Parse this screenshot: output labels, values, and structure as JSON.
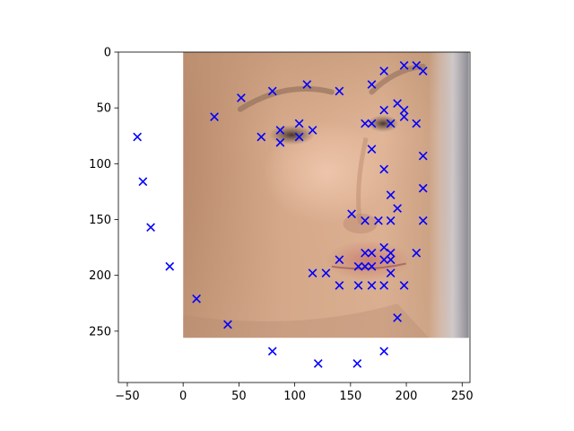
{
  "chart_data": {
    "type": "scatter",
    "title": "",
    "xlabel": "",
    "ylabel": "",
    "xlim": [
      -58,
      257
    ],
    "ylim": [
      296,
      0
    ],
    "y_inverted": true,
    "grid": false,
    "legend": "none",
    "marker": "x",
    "marker_color": "#0000ff",
    "background_image": {
      "depicts": "face-photo",
      "extent_x": [
        0,
        256
      ],
      "extent_y": [
        0,
        256
      ]
    },
    "xticks": [
      -50,
      0,
      50,
      100,
      150,
      200,
      250
    ],
    "yticks": [
      0,
      50,
      100,
      150,
      200,
      250
    ],
    "xtick_labels": [
      "−50",
      "0",
      "50",
      "100",
      "150",
      "200",
      "250"
    ],
    "ytick_labels": [
      "0",
      "50",
      "100",
      "150",
      "200",
      "250"
    ],
    "points": [
      [
        -41,
        76
      ],
      [
        -36,
        116
      ],
      [
        -29,
        157
      ],
      [
        -12,
        192
      ],
      [
        12,
        221
      ],
      [
        40,
        244
      ],
      [
        80,
        268
      ],
      [
        121,
        279
      ],
      [
        156,
        279
      ],
      [
        180,
        268
      ],
      [
        28,
        58
      ],
      [
        52,
        41
      ],
      [
        80,
        35
      ],
      [
        111,
        29
      ],
      [
        140,
        35
      ],
      [
        70,
        76
      ],
      [
        87,
        70
      ],
      [
        87,
        81
      ],
      [
        104,
        64
      ],
      [
        104,
        76
      ],
      [
        116,
        70
      ],
      [
        163,
        64
      ],
      [
        169,
        64
      ],
      [
        186,
        64
      ],
      [
        180,
        52
      ],
      [
        192,
        46
      ],
      [
        198,
        52
      ],
      [
        198,
        58
      ],
      [
        169,
        29
      ],
      [
        180,
        17
      ],
      [
        198,
        12
      ],
      [
        209,
        12
      ],
      [
        215,
        17
      ],
      [
        209,
        64
      ],
      [
        215,
        93
      ],
      [
        215,
        122
      ],
      [
        215,
        151
      ],
      [
        209,
        180
      ],
      [
        169,
        87
      ],
      [
        180,
        105
      ],
      [
        186,
        128
      ],
      [
        192,
        140
      ],
      [
        151,
        145
      ],
      [
        163,
        151
      ],
      [
        175,
        151
      ],
      [
        186,
        151
      ],
      [
        140,
        186
      ],
      [
        163,
        180
      ],
      [
        169,
        180
      ],
      [
        180,
        175
      ],
      [
        186,
        180
      ],
      [
        186,
        186
      ],
      [
        180,
        186
      ],
      [
        116,
        198
      ],
      [
        128,
        198
      ],
      [
        157,
        192
      ],
      [
        163,
        192
      ],
      [
        169,
        192
      ],
      [
        186,
        198
      ],
      [
        140,
        209
      ],
      [
        157,
        209
      ],
      [
        169,
        209
      ],
      [
        180,
        209
      ],
      [
        198,
        209
      ],
      [
        192,
        238
      ]
    ]
  }
}
